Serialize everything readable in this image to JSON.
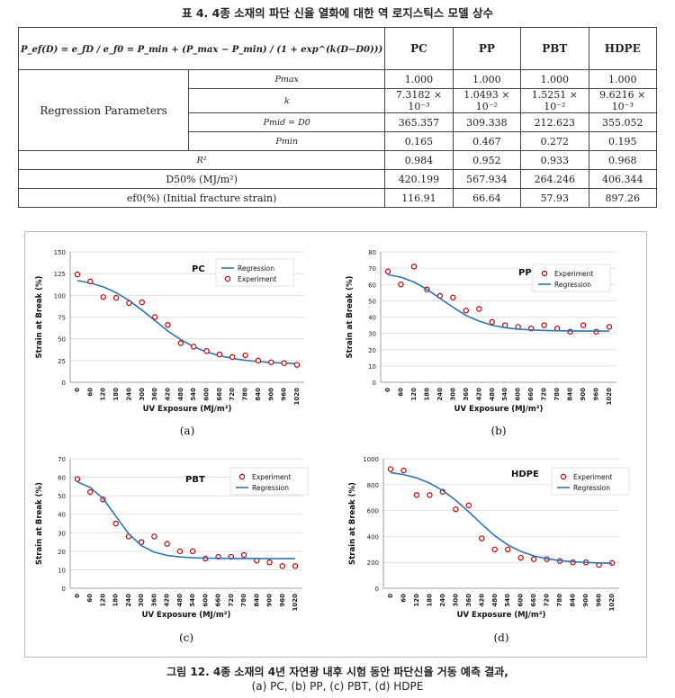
{
  "table_caption": "표 4. 4종 소재의 파단 신율 열화에 대한 역 로지스틱스 모델 상수",
  "table": {
    "formula_text": "P_ef(D) = e_fD / e_f0 = P_min + (P_max − P_min) / (1 + exp^(k(D−D0)))",
    "headers": [
      "PC",
      "PP",
      "PBT",
      "HDPE"
    ],
    "group_label": "Regression Parameters",
    "rows": [
      {
        "label": "Pmax",
        "values": [
          "1.000",
          "1.000",
          "1.000",
          "1.000"
        ]
      },
      {
        "label": "k",
        "values": [
          "7.3182 × 10⁻³",
          "1.0493 × 10⁻²",
          "1.5251 × 10⁻²",
          "9.6216 × 10⁻³"
        ]
      },
      {
        "label": "Pmid = D0",
        "values": [
          "365.357",
          "309.338",
          "212.623",
          "355.052"
        ]
      },
      {
        "label": "Pmin",
        "values": [
          "0.165",
          "0.467",
          "0.272",
          "0.195"
        ]
      },
      {
        "label": "R²",
        "values": [
          "0.984",
          "0.952",
          "0.933",
          "0.968"
        ]
      },
      {
        "label": "D50% (MJ/m²)",
        "values": [
          "420.199",
          "567.934",
          "264.246",
          "406.344"
        ]
      },
      {
        "label": "ef0(%) (Initial fracture strain)",
        "values": [
          "116.91",
          "66.64",
          "57.93",
          "897.26"
        ]
      }
    ]
  },
  "chart_data": [
    {
      "type": "scatter",
      "title": "PC",
      "xlabel": "UV Exposure (MJ/m²)",
      "ylabel": "Strain at Break (%)",
      "ylim": [
        0,
        150
      ],
      "yticks": [
        0,
        25,
        50,
        75,
        100,
        125,
        150
      ],
      "x": [
        0,
        60,
        120,
        180,
        240,
        300,
        360,
        420,
        480,
        540,
        600,
        660,
        720,
        780,
        840,
        900,
        960,
        1020
      ],
      "series": [
        {
          "name": "Regression",
          "kind": "line",
          "color": "#2e75b6",
          "values": [
            117.0,
            114.2,
            109.8,
            103.0,
            94.0,
            83.0,
            71.0,
            59.0,
            49.0,
            41.0,
            35.0,
            30.5,
            27.5,
            25.3,
            23.8,
            22.7,
            22.0,
            21.4
          ]
        },
        {
          "name": "Experiment",
          "kind": "marker",
          "color": "#c00000",
          "values": [
            124,
            116,
            98,
            97,
            91,
            92,
            75,
            66,
            45,
            41,
            36,
            32,
            29,
            31,
            25,
            23,
            22,
            20
          ]
        }
      ],
      "legend": "top-right"
    },
    {
      "type": "scatter",
      "title": "PP",
      "xlabel": "UV Exposure (MJ/m²)",
      "ylabel": "Strain at Break (%)",
      "ylim": [
        0,
        80
      ],
      "yticks": [
        0,
        10,
        20,
        30,
        40,
        50,
        60,
        70,
        80
      ],
      "x": [
        0,
        60,
        120,
        180,
        240,
        300,
        360,
        420,
        480,
        540,
        600,
        660,
        720,
        780,
        840,
        900,
        960,
        1020
      ],
      "series": [
        {
          "name": "Experiment",
          "kind": "marker",
          "color": "#c00000",
          "values": [
            68,
            60,
            71,
            57,
            53,
            52,
            44,
            45,
            37,
            35,
            34,
            33,
            35,
            33,
            31,
            35,
            31,
            34
          ]
        },
        {
          "name": "Regression",
          "kind": "line",
          "color": "#2e75b6",
          "values": [
            66.0,
            64.5,
            61.5,
            57.0,
            51.5,
            46.0,
            41.0,
            37.5,
            35.0,
            33.5,
            32.6,
            32.1,
            31.8,
            31.6,
            31.5,
            31.4,
            31.4,
            31.4
          ]
        }
      ],
      "legend": "top-right"
    },
    {
      "type": "scatter",
      "title": "PBT",
      "xlabel": "UV Exposure (MJ/m²)",
      "ylabel": "Strain at Break (%)",
      "ylim": [
        0,
        70
      ],
      "yticks": [
        0,
        10,
        20,
        30,
        40,
        50,
        60,
        70
      ],
      "x": [
        0,
        60,
        120,
        180,
        240,
        300,
        360,
        420,
        480,
        540,
        600,
        660,
        720,
        780,
        840,
        900,
        960,
        1020
      ],
      "series": [
        {
          "name": "Experiment",
          "kind": "marker",
          "color": "#c00000",
          "values": [
            59,
            52,
            48,
            35,
            28,
            25,
            28,
            24,
            20,
            20,
            16,
            17,
            17,
            18,
            15,
            14,
            12,
            12
          ]
        },
        {
          "name": "Regression",
          "kind": "line",
          "color": "#2e75b6",
          "values": [
            57.5,
            54.5,
            48.5,
            39.0,
            29.5,
            23.0,
            19.5,
            17.8,
            16.9,
            16.5,
            16.3,
            16.2,
            16.1,
            16.1,
            16.1,
            16.0,
            16.0,
            16.0
          ]
        }
      ],
      "legend": "top-right"
    },
    {
      "type": "scatter",
      "title": "HDPE",
      "xlabel": "UV Exposure (MJ/m²)",
      "ylabel": "Strain at Break (%)",
      "ylim": [
        0,
        1000
      ],
      "yticks": [
        0,
        200,
        400,
        600,
        800,
        1000
      ],
      "x": [
        0,
        60,
        120,
        180,
        240,
        300,
        360,
        420,
        480,
        540,
        600,
        660,
        720,
        780,
        840,
        900,
        960,
        1020
      ],
      "series": [
        {
          "name": "Experiment",
          "kind": "marker",
          "color": "#c00000",
          "values": [
            920,
            910,
            720,
            720,
            745,
            610,
            640,
            385,
            300,
            300,
            235,
            225,
            225,
            210,
            200,
            200,
            180,
            195
          ]
        },
        {
          "name": "Regression",
          "kind": "line",
          "color": "#2e75b6",
          "values": [
            893,
            878,
            852,
            812,
            755,
            680,
            590,
            495,
            405,
            335,
            285,
            250,
            228,
            214,
            205,
            199,
            195,
            193
          ]
        }
      ],
      "legend": "top-right"
    }
  ],
  "panel_labels": [
    "(a)",
    "(b)",
    "(c)",
    "(d)"
  ],
  "figure_caption": {
    "line1": "그림 12. 4종 소재의 4년 자연광 내후 시험 동안 파단신율 거동 예측 결과,",
    "line2": "(a) PC, (b) PP, (c) PBT, (d) HDPE"
  }
}
